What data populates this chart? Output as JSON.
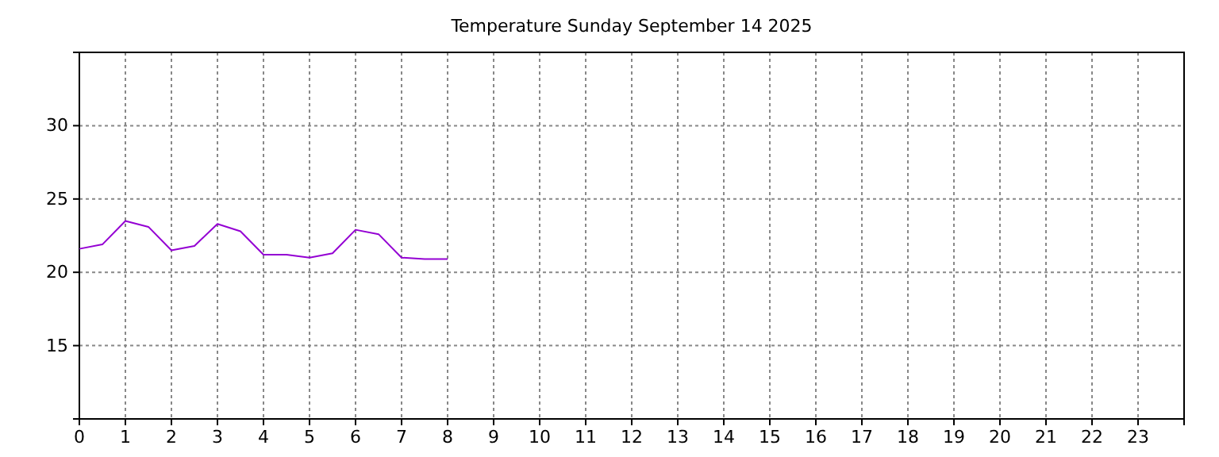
{
  "chart_data": {
    "type": "line",
    "title": "Temperature Sunday September 14 2025",
    "x": [
      0,
      0.5,
      1,
      1.5,
      2,
      2.5,
      3,
      3.5,
      4,
      4.5,
      5,
      5.5,
      6,
      6.5,
      7,
      7.5,
      8
    ],
    "series": [
      {
        "color": "#9400d3",
        "values": [
          21.6,
          21.9,
          23.5,
          23.1,
          21.5,
          21.8,
          23.3,
          22.8,
          21.2,
          21.2,
          21.0,
          21.3,
          22.9,
          22.6,
          21.0,
          20.9,
          20.9
        ]
      }
    ],
    "xlim": [
      0,
      24
    ],
    "xticks": [
      0,
      1,
      2,
      3,
      4,
      5,
      6,
      7,
      8,
      9,
      10,
      11,
      12,
      13,
      14,
      15,
      16,
      17,
      18,
      19,
      20,
      21,
      22,
      23
    ],
    "ylim": [
      10,
      35
    ],
    "yticks": [
      15,
      20,
      25,
      30
    ],
    "grid": true,
    "marker": "none",
    "line_style": "solid"
  }
}
